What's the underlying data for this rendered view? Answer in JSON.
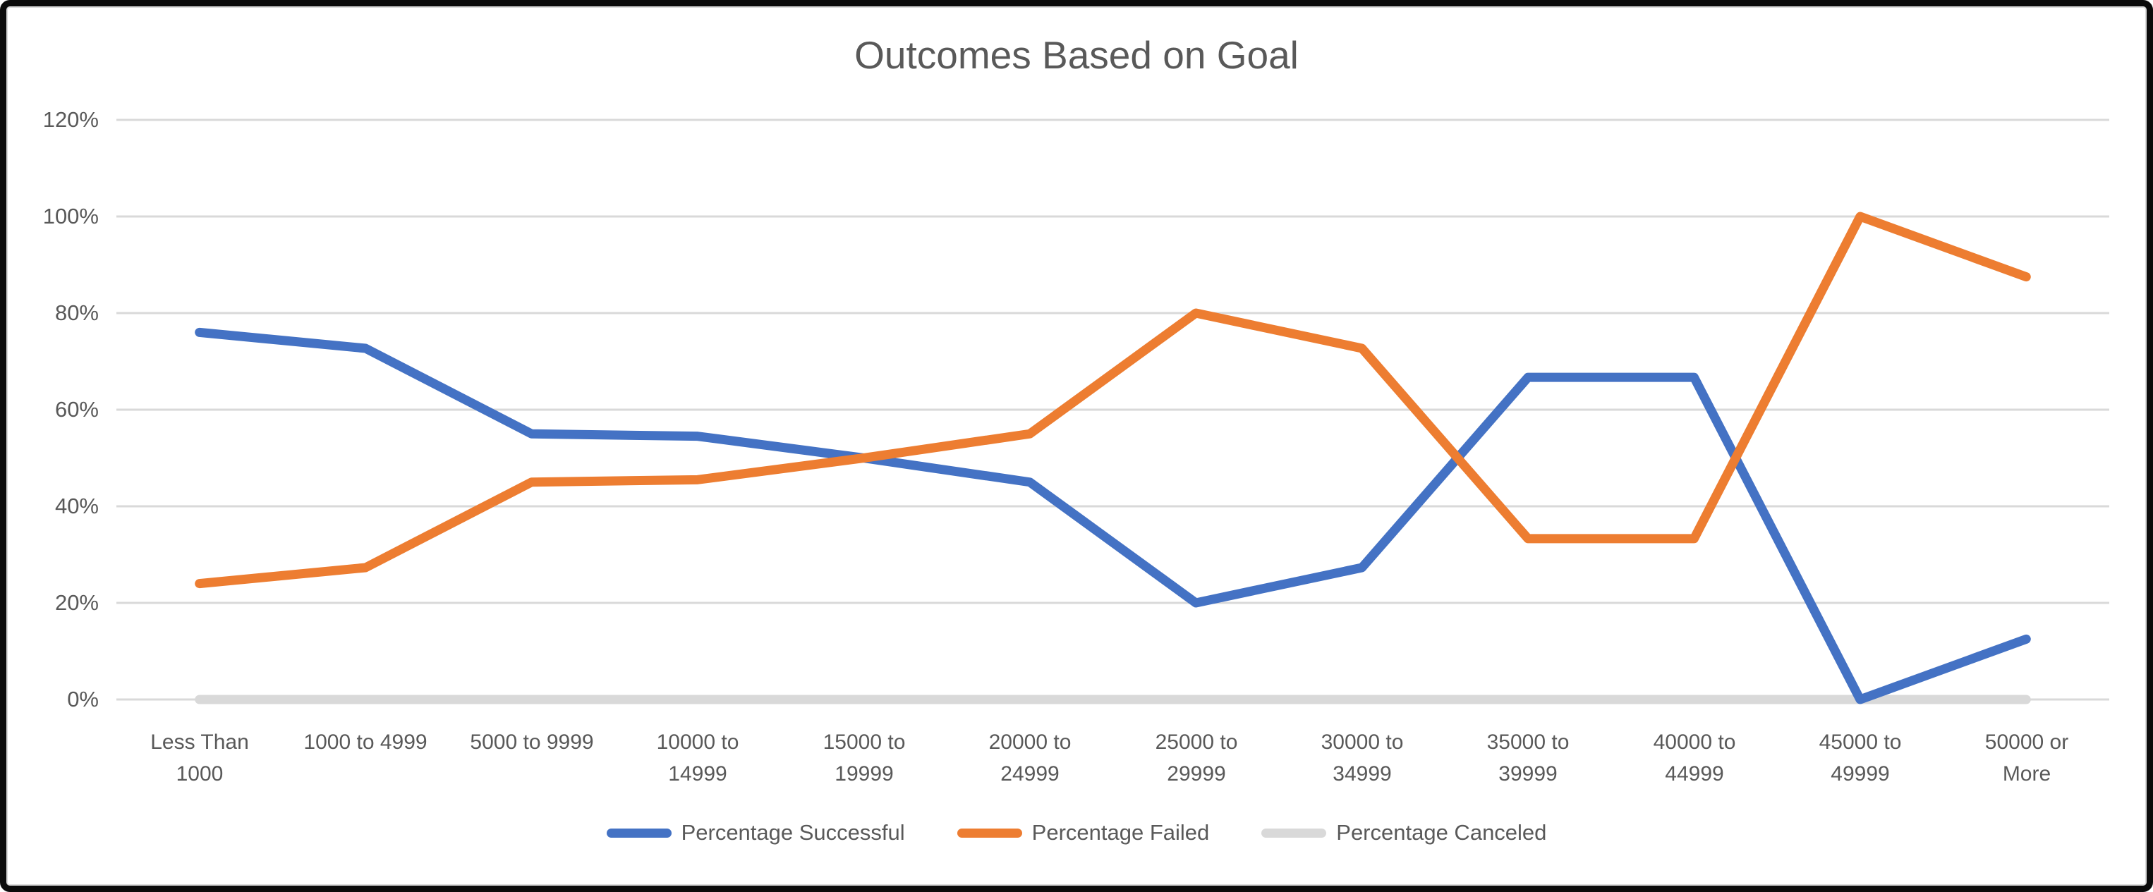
{
  "chart_data": {
    "type": "line",
    "title": "Outcomes Based on Goal",
    "xlabel": "",
    "ylabel": "",
    "ylim": [
      0,
      120
    ],
    "y_unit": "%",
    "grid": true,
    "legend_position": "bottom",
    "y_tick_labels": [
      "120%",
      "100%",
      "80%",
      "60%",
      "40%",
      "20%",
      "0%"
    ],
    "categories": [
      "Less Than 1000",
      "1000 to 4999",
      "5000 to 9999",
      "10000 to 14999",
      "15000 to 19999",
      "20000 to 24999",
      "25000 to 29999",
      "30000 to 34999",
      "35000 to 39999",
      "40000 to 44999",
      "45000 to 49999",
      "50000 or More"
    ],
    "category_lines": [
      [
        "Less Than",
        "1000"
      ],
      [
        "1000 to 4999"
      ],
      [
        "5000 to 9999"
      ],
      [
        "10000 to",
        "14999"
      ],
      [
        "15000 to",
        "19999"
      ],
      [
        "20000 to",
        "24999"
      ],
      [
        "25000 to",
        "29999"
      ],
      [
        "30000 to",
        "34999"
      ],
      [
        "35000 to",
        "39999"
      ],
      [
        "40000 to",
        "44999"
      ],
      [
        "45000 to",
        "49999"
      ],
      [
        "50000 or",
        "More"
      ]
    ],
    "series": [
      {
        "name": "Percentage Successful",
        "color": "#4472C4",
        "values": [
          76,
          72.7,
          55,
          54.5,
          50,
          45,
          20,
          27.3,
          66.7,
          66.7,
          0,
          12.5
        ]
      },
      {
        "name": "Percentage Failed",
        "color": "#ED7D31",
        "values": [
          24,
          27.3,
          45,
          45.5,
          50,
          55,
          80,
          72.7,
          33.3,
          33.3,
          100,
          87.5
        ]
      },
      {
        "name": "Percentage Canceled",
        "color": "#D9D9D9",
        "values": [
          0,
          0,
          0,
          0,
          0,
          0,
          0,
          0,
          0,
          0,
          0,
          0
        ]
      }
    ],
    "gridline_color": "#D9D9D9",
    "text_color": "#595959"
  }
}
